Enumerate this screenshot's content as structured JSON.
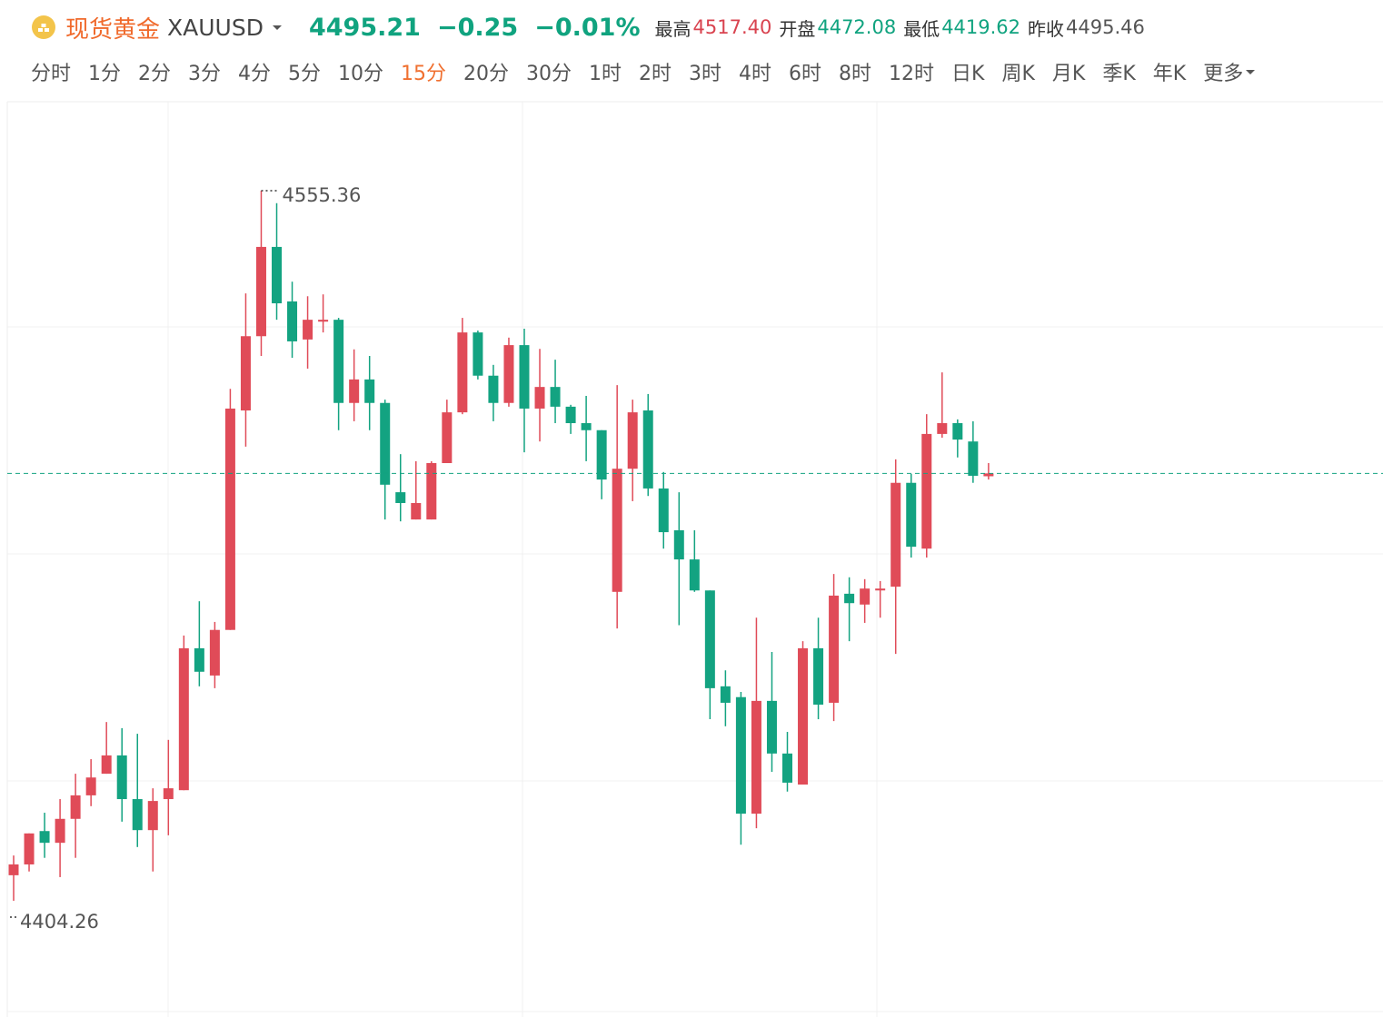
{
  "header": {
    "name": "现货黄金",
    "symbol": "XAUUSD",
    "price": "4495.21",
    "change": "−0.25",
    "change_pct": "−0.01%",
    "stats": [
      {
        "label": "最高",
        "value": "4517.40"
      },
      {
        "label": "开盘",
        "value": "4472.08"
      },
      {
        "label": "最低",
        "value": "4419.62"
      },
      {
        "label": "昨收",
        "value": "4495.46"
      }
    ],
    "tabs": [
      "分时",
      "1分",
      "2分",
      "3分",
      "4分",
      "5分",
      "10分",
      "15分",
      "20分",
      "30分",
      "1时",
      "2时",
      "3时",
      "4时",
      "6时",
      "8时",
      "12时",
      "日K",
      "周K",
      "月K",
      "季K",
      "年K",
      "更多"
    ],
    "active_tab": 7
  },
  "chart_data": {
    "type": "candlestick",
    "up_color": "#e04b58",
    "down_color": "#13a381",
    "ylim": [
      4380.5,
      4574.3
    ],
    "high_label": 4555.36,
    "low_label": 4404.26,
    "categories": [
      null,
      null,
      null,
      null,
      null,
      null,
      null,
      null,
      null,
      null,
      null,
      null,
      null,
      null,
      null,
      null,
      null,
      null,
      null,
      null,
      null,
      null,
      null,
      null,
      null,
      null,
      null,
      null,
      null,
      null,
      null,
      null,
      null,
      null,
      null,
      null,
      null,
      null,
      null,
      null,
      null,
      null,
      null,
      null,
      null,
      null,
      null,
      null,
      null,
      null,
      null,
      null,
      null,
      null,
      null,
      null,
      null,
      null,
      null,
      null,
      null,
      null,
      null,
      null
    ],
    "open": [
      4409.7,
      4412.0,
      4419.1,
      4416.6,
      4421.7,
      4426.7,
      4431.3,
      4435.2,
      4425.9,
      4419.3,
      4425.9,
      4427.8,
      4458.0,
      4452.2,
      4461.9,
      4508.6,
      4524.4,
      4543.4,
      4531.8,
      4523.7,
      4527.5,
      4527.9,
      4510.2,
      4515.2,
      4510.2,
      4491.2,
      4485.4,
      4485.4,
      4497.4,
      4508.2,
      4525.2,
      4516.0,
      4510.2,
      4522.5,
      4509.0,
      4513.6,
      4509.4,
      4505.9,
      4504.4,
      4470.0,
      4496.2,
      4508.6,
      4492.0,
      4483.1,
      4476.9,
      4470.3,
      4449.9,
      4447.6,
      4422.8,
      4446.8,
      4435.6,
      4429.0,
      4458.0,
      4446.4,
      4469.6,
      4467.3,
      4470.3,
      4471.1,
      4493.2,
      4479.2,
      4503.6,
      4505.9,
      4502.0,
      4494.6
    ],
    "high": [
      4413.9,
      4418.6,
      4423.0,
      4425.9,
      4431.3,
      4434.4,
      4442.3,
      4441.0,
      4439.8,
      4428.2,
      4438.5,
      4460.7,
      4468.0,
      4463.6,
      4513.2,
      4533.5,
      4555.36,
      4552.7,
      4536.0,
      4532.9,
      4533.3,
      4528.3,
      4521.6,
      4520.2,
      4510.9,
      4499.3,
      4497.8,
      4497.8,
      4510.9,
      4528.3,
      4525.6,
      4518.3,
      4524.1,
      4526.0,
      4521.7,
      4519.4,
      4509.8,
      4511.7,
      4504.4,
      4514.0,
      4510.9,
      4512.1,
      4495.5,
      4491.2,
      4483.1,
      4470.3,
      4453.3,
      4448.7,
      4464.5,
      4457.2,
      4440.2,
      4459.5,
      4464.5,
      4473.8,
      4473.1,
      4472.7,
      4472.3,
      4498.2,
      4495.1,
      4507.8,
      4516.7,
      4506.7,
      4506.3,
      4497.4
    ],
    "low": [
      4404.26,
      4410.5,
      4413.4,
      4409.3,
      4413.4,
      4424.4,
      4431.3,
      4421.1,
      4415.7,
      4410.5,
      4418.2,
      4427.8,
      4449.9,
      4449.5,
      4461.9,
      4500.9,
      4520.2,
      4527.9,
      4519.8,
      4517.5,
      4525.2,
      4504.4,
      4506.3,
      4504.4,
      4485.4,
      4485.0,
      4485.4,
      4485.4,
      4497.4,
      4507.8,
      4515.2,
      4506.3,
      4509.4,
      4499.7,
      4502.0,
      4505.9,
      4503.6,
      4497.8,
      4489.7,
      4462.2,
      4489.3,
      4490.4,
      4479.2,
      4462.9,
      4470.0,
      4442.9,
      4441.4,
      4416.2,
      4419.7,
      4431.7,
      4427.5,
      4429.0,
      4442.9,
      4442.5,
      4459.5,
      4463.4,
      4464.5,
      4456.8,
      4477.3,
      4477.3,
      4502.8,
      4498.6,
      4493.2,
      4493.9
    ],
    "close": [
      4412.0,
      4418.6,
      4416.6,
      4421.7,
      4426.7,
      4430.5,
      4435.2,
      4425.9,
      4419.3,
      4425.5,
      4428.2,
      4458.0,
      4453.0,
      4461.9,
      4509.0,
      4524.4,
      4543.4,
      4531.4,
      4523.3,
      4527.9,
      4527.9,
      4510.2,
      4515.2,
      4510.2,
      4492.8,
      4488.9,
      4488.9,
      4497.4,
      4508.2,
      4525.2,
      4516.0,
      4510.2,
      4522.5,
      4509.0,
      4513.6,
      4509.4,
      4505.9,
      4504.4,
      4493.9,
      4496.2,
      4508.2,
      4492.0,
      4482.7,
      4476.9,
      4470.3,
      4449.5,
      4446.4,
      4422.8,
      4446.8,
      4435.6,
      4429.4,
      4458.0,
      4446.0,
      4469.2,
      4467.6,
      4470.7,
      4470.7,
      4493.2,
      4479.6,
      4503.6,
      4505.9,
      4502.4,
      4494.7,
      4495.21
    ]
  }
}
